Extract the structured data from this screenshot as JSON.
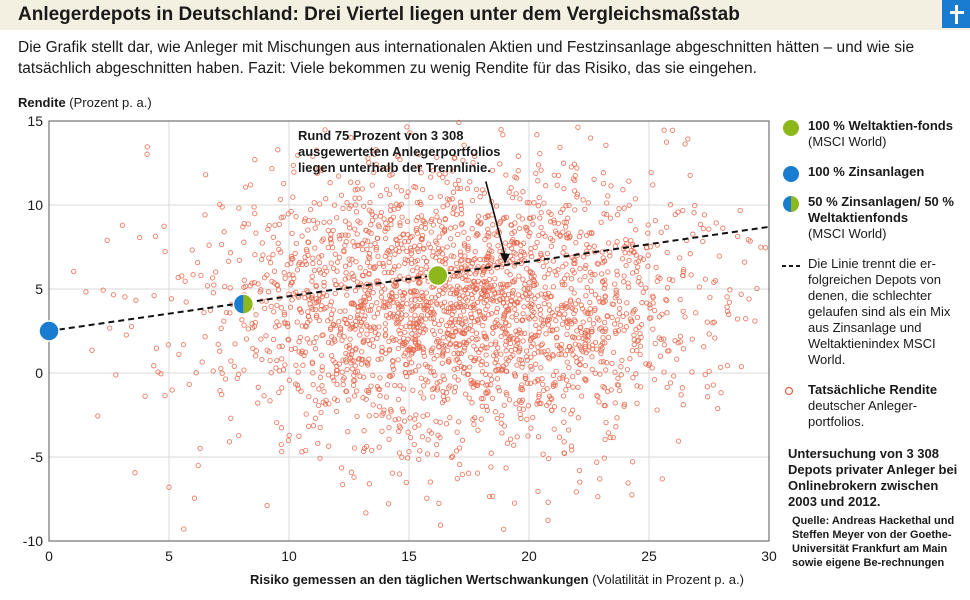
{
  "title": "Anlegerdepots in Deutschland: Drei Viertel liegen unter dem Vergleichsmaßstab",
  "subtitle": "Die Grafik stellt dar, wie Anleger mit Mischungen aus internationalen Aktien und Festzinsanlage abgeschnitten hätten – und wie sie tatsächlich abgeschnitten haben. Fazit: Viele bekommen zu wenig Rendite für das Risiko, das sie eingehen.",
  "annotation": "Rund 75 Prozent von 3 308 ausgewerteten Anlegerportfolios liegen unterhalb der Trennlinie.",
  "colors": {
    "green": "#8cb81c",
    "blue": "#1a7ccf",
    "dots": "#e8664a",
    "grid": "#d9d9d9",
    "bg": "#f3efe1"
  },
  "legend": {
    "stocks_bold": "100 % Weltaktien-fonds",
    "stocks_note": "(MSCI World)",
    "bonds_bold": "100 % Zinsanlagen",
    "mix_bold": "50 % Zinsanlagen/ 50 % Weltaktienfonds",
    "mix_note": "(MSCI World)",
    "line_text": "Die Linie trennt die er-folgreichen Depots von denen, die schlechter gelaufen sind als ein Mix aus Zinsanlage und Weltaktienindex MSCI World.",
    "dots_bold": "Tatsächliche Rendite",
    "dots_note": "deutscher Anleger-portfolios."
  },
  "study": "Untersuchung von 3 308 Depots privater Anleger bei Onlinebrokern zwischen 2003 und 2012.",
  "source": "Quelle: Andreas Hackethal und Steffen Meyer von der Goethe-Universität Frankfurt am Main sowie eigene Be-rechnungen",
  "chart_data": {
    "type": "scatter",
    "title": "Anlegerdepots in Deutschland: Drei Viertel liegen unter dem Vergleichsmaßstab",
    "ylabel_bold": "Rendite",
    "ylabel_rest": " (Prozent p. a.)",
    "xlabel_bold": "Risiko gemessen an den täglichen Wertschwankungen",
    "xlabel_rest": " (Volatilität in Prozent p. a.)",
    "xlim": [
      0,
      30
    ],
    "ylim": [
      -10,
      15
    ],
    "xticks": [
      "0",
      "5",
      "10",
      "15",
      "20",
      "25",
      "30"
    ],
    "yticks": [
      "15",
      "10",
      "5",
      "0",
      "-5",
      "-10"
    ],
    "grid": true,
    "benchmark_points": [
      {
        "name": "100 % Zinsanlagen",
        "x": 0.0,
        "y": 2.5,
        "color": "#1a7ccf"
      },
      {
        "name": "50 % Zinsanlagen/ 50 % Weltaktienfonds",
        "x": 8.1,
        "y": 4.1,
        "color": "mix"
      },
      {
        "name": "100 % Weltaktienfonds",
        "x": 16.2,
        "y": 5.8,
        "color": "#8cb81c"
      }
    ],
    "dividing_line": {
      "x": [
        0,
        30
      ],
      "y": [
        2.5,
        8.7
      ]
    },
    "annotation_arrow": {
      "from": [
        18.2,
        11.4
      ],
      "to": [
        19.0,
        6.5
      ]
    },
    "portfolio_count": 3308,
    "portfolio_cluster": {
      "center_x": 17.0,
      "center_y": 4.0,
      "sd_x": 4.6,
      "sd_y": 3.8,
      "x_range": [
        0.5,
        30
      ],
      "y_range": [
        -10,
        15
      ]
    }
  }
}
